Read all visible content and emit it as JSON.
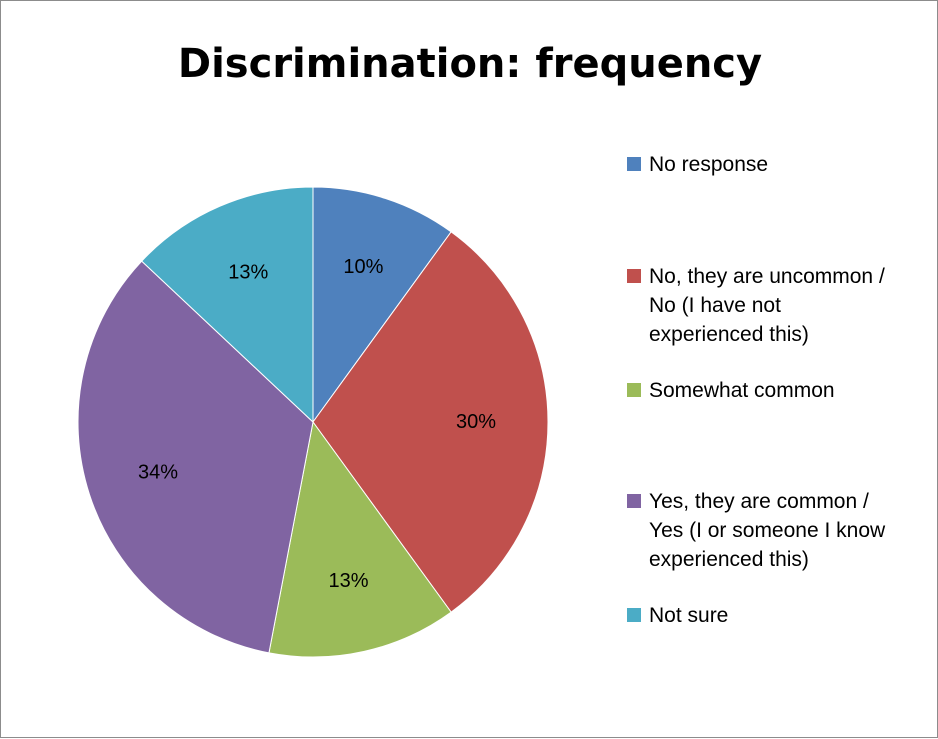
{
  "chart_data": {
    "type": "pie",
    "title": "Discrimination: frequency",
    "slices": [
      {
        "label": "No response",
        "value": 10,
        "display": "10%",
        "color": "#4f81bd"
      },
      {
        "label": "No, they are uncommon / No (I have not experienced this)",
        "value": 30,
        "display": "30%",
        "color": "#c0504d"
      },
      {
        "label": "Somewhat common",
        "value": 13,
        "display": "13%",
        "color": "#9bbb59"
      },
      {
        "label": "Yes, they are common / Yes (I or someone I know experienced this)",
        "value": 34,
        "display": "34%",
        "color": "#8064a2"
      },
      {
        "label": "Not sure",
        "value": 13,
        "display": "13%",
        "color": "#4bacc6"
      }
    ],
    "legend_position": "right"
  },
  "legend": {
    "items": [
      {
        "lines": [
          "No response"
        ]
      },
      {
        "lines": [
          "No, they are uncommon /",
          "No (I have not",
          "experienced this)"
        ]
      },
      {
        "lines": [
          "Somewhat common"
        ]
      },
      {
        "lines": [
          "Yes, they are common /",
          "Yes (I or someone I know",
          "experienced this)"
        ]
      },
      {
        "lines": [
          "Not sure"
        ]
      }
    ]
  }
}
